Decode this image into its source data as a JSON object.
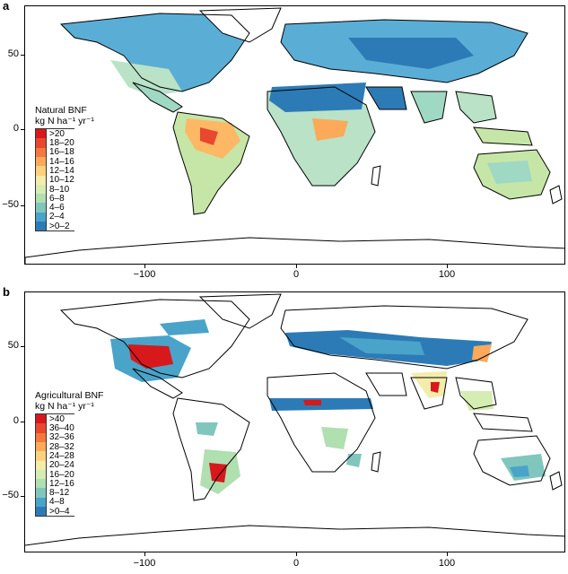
{
  "panels": [
    {
      "letter": "a",
      "legend_title_line1": "Natural BNF",
      "legend_title_line2": "kg N ha⁻¹ yr⁻¹",
      "legend": [
        {
          "label": ">20",
          "color": "#d7191c"
        },
        {
          "label": "18–20",
          "color": "#e8482e"
        },
        {
          "label": "16–18",
          "color": "#f4793c"
        },
        {
          "label": "14–16",
          "color": "#fca95a"
        },
        {
          "label": "12–14",
          "color": "#fed17e"
        },
        {
          "label": "10–12",
          "color": "#f3ecab"
        },
        {
          "label": "8–10",
          "color": "#d5ecb3"
        },
        {
          "label": "6–8",
          "color": "#b0dfb0"
        },
        {
          "label": "4–6",
          "color": "#80c6bd"
        },
        {
          "label": "2–4",
          "color": "#4aa3c9"
        },
        {
          "label": ">0–2",
          "color": "#2c7bb6"
        }
      ]
    },
    {
      "letter": "b",
      "legend_title_line1": "Agricultural BNF",
      "legend_title_line2": "kg N ha⁻¹ yr⁻¹",
      "legend": [
        {
          "label": ">40",
          "color": "#d7191c"
        },
        {
          "label": "36–40",
          "color": "#e8482e"
        },
        {
          "label": "32–36",
          "color": "#f4793c"
        },
        {
          "label": "28–32",
          "color": "#fca95a"
        },
        {
          "label": "24–28",
          "color": "#fed17e"
        },
        {
          "label": "20–24",
          "color": "#f3ecab"
        },
        {
          "label": "16–20",
          "color": "#d5ecb3"
        },
        {
          "label": "12–16",
          "color": "#b0dfb0"
        },
        {
          "label": "8–12",
          "color": "#80c6bd"
        },
        {
          "label": "4–8",
          "color": "#4aa3c9"
        },
        {
          "label": ">0–4",
          "color": "#2c7bb6"
        }
      ]
    }
  ],
  "y_ticks": [
    "50",
    "0",
    "−50"
  ],
  "x_ticks": [
    "−100",
    "0",
    "100"
  ]
}
